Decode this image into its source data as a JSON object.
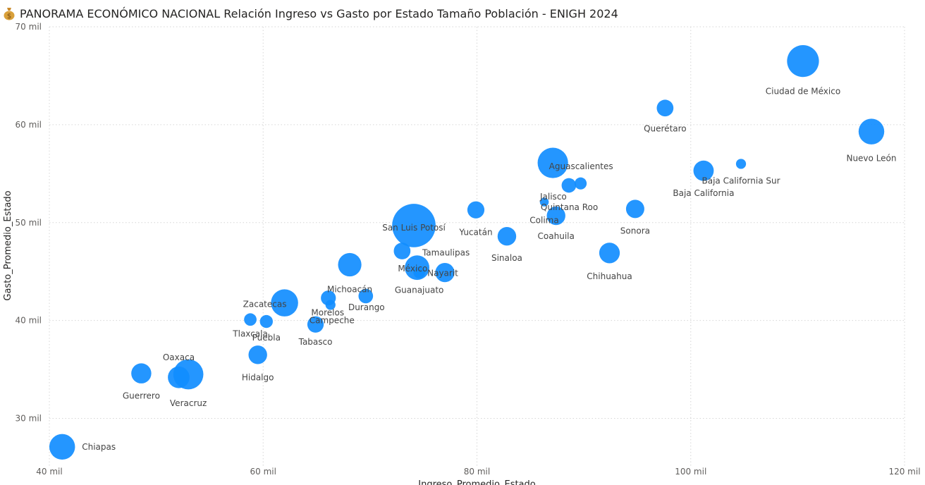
{
  "title": {
    "icon": "money-bag-icon",
    "text": "PANORAMA ECONÓMICO NACIONAL Relación Ingreso vs Gasto por Estado Tamaño Población - ENIGH 2024"
  },
  "colors": {
    "bubble": "#118DFF",
    "grid": "#d6d6d6"
  },
  "chart_data": {
    "type": "scatter",
    "subtype": "bubble",
    "title": "PANORAMA ECONÓMICO NACIONAL Relación Ingreso vs Gasto por Estado Tamaño Población - ENIGH 2024",
    "xlabel": "Ingreso_Promedio_Estado",
    "ylabel": "Gasto_Promedio_Estado",
    "size_measure": "Tamaño Población",
    "xlim": [
      40000,
      120000
    ],
    "ylim": [
      25000,
      70000
    ],
    "x_ticks": [
      40000,
      60000,
      80000,
      100000,
      120000
    ],
    "x_tick_labels": [
      "40 mil",
      "60 mil",
      "80 mil",
      "100 mil",
      "120 mil"
    ],
    "y_ticks": [
      30000,
      40000,
      50000,
      60000,
      70000
    ],
    "y_tick_labels": [
      "30 mil",
      "40 mil",
      "50 mil",
      "60 mil",
      "70 mil"
    ],
    "grid": true,
    "points": [
      {
        "name": "Chiapas",
        "x": 41200,
        "y": 27100,
        "size": 5.9
      },
      {
        "name": "Guerrero",
        "x": 48600,
        "y": 34600,
        "size": 3.6
      },
      {
        "name": "Oaxaca",
        "x": 52100,
        "y": 34200,
        "size": 4.2
      },
      {
        "name": "Veracruz",
        "x": 53000,
        "y": 34500,
        "size": 8.1
      },
      {
        "name": "Hidalgo",
        "x": 59500,
        "y": 36500,
        "size": 3.1
      },
      {
        "name": "Tlaxcala",
        "x": 58800,
        "y": 40100,
        "size": 1.4
      },
      {
        "name": "Puebla",
        "x": 60300,
        "y": 39900,
        "size": 1.5
      },
      {
        "name": "Zacatecas",
        "x": 62000,
        "y": 41800,
        "size": 6.6
      },
      {
        "name": "Tabasco",
        "x": 64900,
        "y": 39600,
        "size": 2.4
      },
      {
        "name": "Morelos",
        "x": 66100,
        "y": 42300,
        "size": 2.0
      },
      {
        "name": "Campeche",
        "x": 66300,
        "y": 41600,
        "size": 0.9
      },
      {
        "name": "Michoacán",
        "x": 68100,
        "y": 45700,
        "size": 4.9
      },
      {
        "name": "Durango",
        "x": 69600,
        "y": 42500,
        "size": 1.9
      },
      {
        "name": "San Luis Potosí",
        "x": 74100,
        "y": 49700,
        "size": 16.9
      },
      {
        "name": "México",
        "x": 73000,
        "y": 47100,
        "size": 2.5
      },
      {
        "name": "Tamaulipas",
        "x": 74400,
        "y": 45400,
        "size": 5.4
      },
      {
        "name": "Guanajuato",
        "x": 74600,
        "y": 44900,
        "size": 1.2
      },
      {
        "name": "Nayarit",
        "x": 77000,
        "y": 44900,
        "size": 3.3
      },
      {
        "name": "Yucatán",
        "x": 79900,
        "y": 51300,
        "size": 2.6
      },
      {
        "name": "Sinaloa",
        "x": 82800,
        "y": 48600,
        "size": 3.1
      },
      {
        "name": "Colima",
        "x": 86300,
        "y": 52100,
        "size": 0.7
      },
      {
        "name": "Aguascalientes",
        "x": 87100,
        "y": 56100,
        "size": 8.3
      },
      {
        "name": "Jalisco",
        "x": 88600,
        "y": 53800,
        "size": 1.9
      },
      {
        "name": "Quintana Roo",
        "x": 89700,
        "y": 54000,
        "size": 1.3
      },
      {
        "name": "Coahuila",
        "x": 87400,
        "y": 50700,
        "size": 3.1
      },
      {
        "name": "Chihuahua",
        "x": 92400,
        "y": 46900,
        "size": 3.8
      },
      {
        "name": "Sonora",
        "x": 94800,
        "y": 51400,
        "size": 3.0
      },
      {
        "name": "Querétaro",
        "x": 97600,
        "y": 61700,
        "size": 2.5
      },
      {
        "name": "Baja California",
        "x": 101200,
        "y": 55300,
        "size": 3.7
      },
      {
        "name": "Baja California Sur",
        "x": 104700,
        "y": 56000,
        "size": 0.9
      },
      {
        "name": "Ciudad de México",
        "x": 110500,
        "y": 66500,
        "size": 9.1
      },
      {
        "name": "Nuevo León",
        "x": 116900,
        "y": 59300,
        "size": 5.9
      }
    ]
  }
}
